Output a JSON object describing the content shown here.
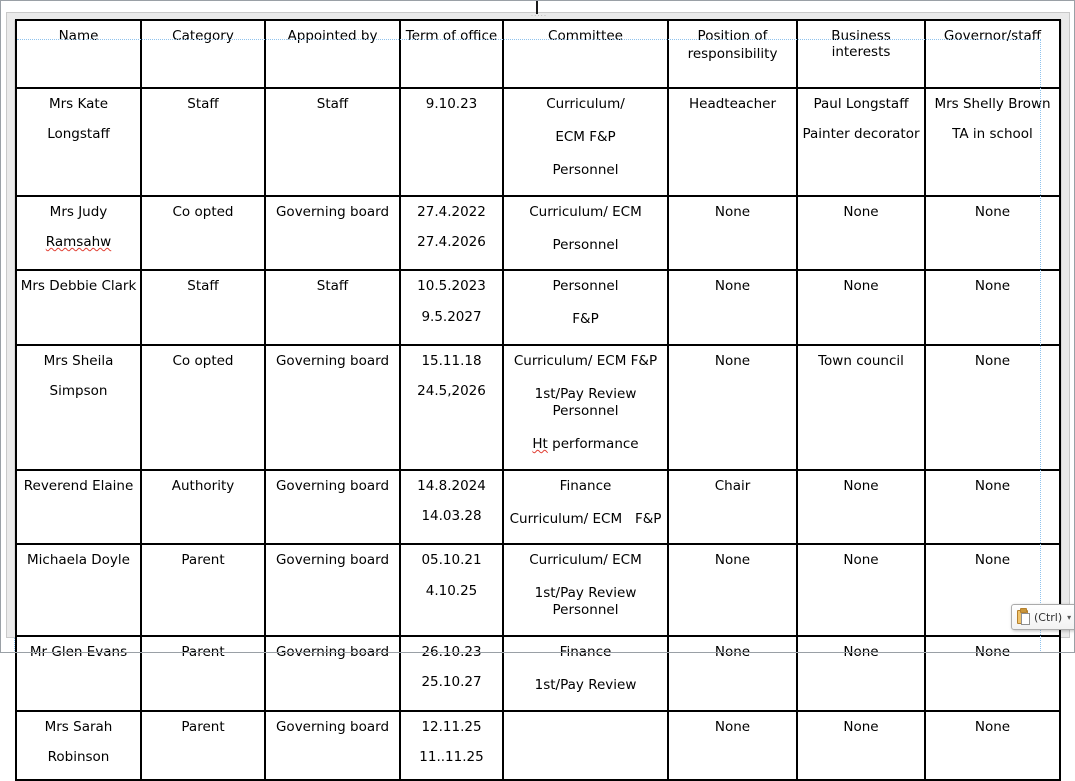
{
  "document": {
    "table": {
      "headers": [
        {
          "lines": [
            "Name"
          ]
        },
        {
          "lines": [
            "Category"
          ]
        },
        {
          "lines": [
            "Appointed by"
          ]
        },
        {
          "lines": [
            "Term of office"
          ]
        },
        {
          "lines": [
            "Committee"
          ]
        },
        {
          "lines": [
            "Position of",
            "responsibility"
          ]
        },
        {
          "lines": [
            "Business interests"
          ]
        },
        {
          "lines": [
            "Governor/staff"
          ]
        }
      ],
      "rows": [
        {
          "cells": [
            {
              "lines": [
                "Mrs Kate",
                "Longstaff"
              ]
            },
            {
              "lines": [
                "Staff"
              ]
            },
            {
              "lines": [
                "Staff"
              ]
            },
            {
              "lines": [
                "9.10.23"
              ]
            },
            {
              "lines": [
                "Curriculum/",
                "ECM F&P",
                "Personnel"
              ]
            },
            {
              "lines": [
                "Headteacher"
              ]
            },
            {
              "lines": [
                "Paul Longstaff",
                "Painter decorator"
              ]
            },
            {
              "lines": [
                "Mrs Shelly Brown",
                "TA in school"
              ]
            }
          ]
        },
        {
          "cells": [
            {
              "lines": [
                "Mrs Judy",
                "Ramsahw"
              ]
            },
            {
              "lines": [
                "Co opted"
              ]
            },
            {
              "lines": [
                "Governing board"
              ]
            },
            {
              "lines": [
                "27.4.2022",
                "27.4.2026"
              ]
            },
            {
              "lines": [
                "Curriculum/ ECM",
                "Personnel"
              ]
            },
            {
              "lines": [
                "None"
              ]
            },
            {
              "lines": [
                "None"
              ]
            },
            {
              "lines": [
                "None"
              ]
            }
          ]
        },
        {
          "cells": [
            {
              "lines": [
                "Mrs Debbie Clark"
              ]
            },
            {
              "lines": [
                "Staff"
              ]
            },
            {
              "lines": [
                "Staff"
              ]
            },
            {
              "lines": [
                "10.5.2023",
                "9.5.2027"
              ]
            },
            {
              "lines": [
                "Personnel",
                "F&P"
              ]
            },
            {
              "lines": [
                "None"
              ]
            },
            {
              "lines": [
                "None"
              ]
            },
            {
              "lines": [
                "None"
              ]
            }
          ]
        },
        {
          "cells": [
            {
              "lines": [
                "Mrs Sheila",
                "Simpson"
              ]
            },
            {
              "lines": [
                "Co opted"
              ]
            },
            {
              "lines": [
                "Governing board"
              ]
            },
            {
              "lines": [
                "15.11.18",
                "24.5,2026"
              ]
            },
            {
              "lines": [
                "Curriculum/ ECM F&P",
                "1st/Pay Review Personnel",
                "Ht performance"
              ]
            },
            {
              "lines": [
                "None"
              ]
            },
            {
              "lines": [
                "Town council"
              ]
            },
            {
              "lines": [
                "None"
              ]
            }
          ]
        },
        {
          "cells": [
            {
              "lines": [
                "Reverend Elaine"
              ]
            },
            {
              "lines": [
                "Authority"
              ]
            },
            {
              "lines": [
                "Governing board"
              ]
            },
            {
              "lines": [
                "14.8.2024",
                "14.03.28"
              ]
            },
            {
              "lines": [
                "Finance",
                "Curriculum/ ECM   F&P"
              ]
            },
            {
              "lines": [
                "Chair"
              ]
            },
            {
              "lines": [
                "None"
              ]
            },
            {
              "lines": [
                "None"
              ]
            }
          ]
        },
        {
          "cells": [
            {
              "lines": [
                "Michaela Doyle"
              ]
            },
            {
              "lines": [
                "Parent"
              ]
            },
            {
              "lines": [
                "Governing board"
              ]
            },
            {
              "lines": [
                "05.10.21",
                "4.10.25"
              ]
            },
            {
              "lines": [
                "Curriculum/ ECM",
                "1st/Pay Review Personnel"
              ]
            },
            {
              "lines": [
                "None"
              ]
            },
            {
              "lines": [
                "None"
              ]
            },
            {
              "lines": [
                "None"
              ]
            }
          ]
        },
        {
          "cells": [
            {
              "lines": [
                "Mr Glen Evans"
              ]
            },
            {
              "lines": [
                "Parent"
              ]
            },
            {
              "lines": [
                "Governing board"
              ]
            },
            {
              "lines": [
                "26.10.23",
                "25.10.27"
              ]
            },
            {
              "lines": [
                "Finance",
                "1st/Pay Review"
              ]
            },
            {
              "lines": [
                "None"
              ]
            },
            {
              "lines": [
                "None"
              ]
            },
            {
              "lines": [
                "None"
              ]
            }
          ]
        },
        {
          "cells": [
            {
              "lines": [
                "Mrs Sarah",
                "Robinson"
              ]
            },
            {
              "lines": [
                "Parent"
              ]
            },
            {
              "lines": [
                "Governing board"
              ]
            },
            {
              "lines": [
                "12.11.25",
                "11..11.25"
              ]
            },
            {
              "lines": []
            },
            {
              "lines": [
                "None"
              ]
            },
            {
              "lines": [
                "None"
              ]
            },
            {
              "lines": [
                "None"
              ]
            }
          ]
        }
      ],
      "spell_error_words": [
        "Ramsahw",
        "Ht"
      ]
    }
  },
  "paste_options": {
    "label": "(Ctrl)",
    "dropdown_arrow": "▾",
    "icon": "paste-options-clipboard-icon"
  },
  "frame_handle_dots": "·····",
  "colors": {
    "table_border": "#000000",
    "text_boundary_line": "#8fc3ee",
    "spell_underline": "#e03c31",
    "selection_frame": "#eaeaea",
    "clipboard_icon": "#f0c36b"
  }
}
